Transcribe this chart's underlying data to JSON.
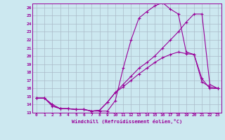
{
  "xlabel": "Windchill (Refroidissement éolien,°C)",
  "bg_color": "#cce8f0",
  "grid_color": "#aabbc8",
  "line_color": "#990099",
  "xlim": [
    -0.5,
    23.5
  ],
  "ylim": [
    13,
    26.5
  ],
  "xticks": [
    0,
    1,
    2,
    3,
    4,
    5,
    6,
    7,
    8,
    9,
    10,
    11,
    12,
    13,
    14,
    15,
    16,
    17,
    18,
    19,
    20,
    21,
    22,
    23
  ],
  "yticks": [
    13,
    14,
    15,
    16,
    17,
    18,
    19,
    20,
    21,
    22,
    23,
    24,
    25,
    26
  ],
  "line1_x": [
    0,
    1,
    2,
    3,
    4,
    5,
    6,
    7,
    8,
    9,
    10,
    11,
    12,
    13,
    14,
    15,
    16,
    17,
    18,
    19,
    20,
    21,
    22,
    23
  ],
  "line1_y": [
    14.8,
    14.8,
    13.8,
    13.5,
    13.5,
    13.4,
    13.4,
    13.2,
    13.2,
    13.2,
    14.5,
    18.5,
    22.0,
    24.7,
    25.5,
    26.2,
    26.6,
    25.8,
    25.2,
    20.5,
    20.2,
    17.2,
    16.0,
    16.0
  ],
  "line2_x": [
    0,
    1,
    2,
    3,
    4,
    5,
    6,
    7,
    8,
    9,
    10,
    11,
    12,
    13,
    14,
    15,
    16,
    17,
    18,
    19,
    20,
    21,
    22,
    23
  ],
  "line2_y": [
    14.8,
    14.8,
    14.0,
    13.5,
    13.5,
    13.4,
    13.4,
    13.2,
    13.3,
    14.3,
    15.5,
    16.5,
    17.5,
    18.5,
    19.2,
    20.0,
    21.0,
    22.0,
    23.0,
    24.2,
    25.2,
    25.2,
    16.5,
    16.0
  ],
  "line3_x": [
    0,
    1,
    2,
    3,
    4,
    5,
    6,
    7,
    8,
    9,
    10,
    11,
    12,
    13,
    14,
    15,
    16,
    17,
    18,
    19,
    20,
    21,
    22,
    23
  ],
  "line3_y": [
    14.8,
    14.8,
    14.0,
    13.5,
    13.5,
    13.4,
    13.4,
    13.2,
    13.3,
    14.3,
    15.5,
    16.2,
    17.0,
    17.8,
    18.5,
    19.2,
    19.8,
    20.2,
    20.5,
    20.3,
    20.2,
    16.8,
    16.2,
    16.0
  ]
}
